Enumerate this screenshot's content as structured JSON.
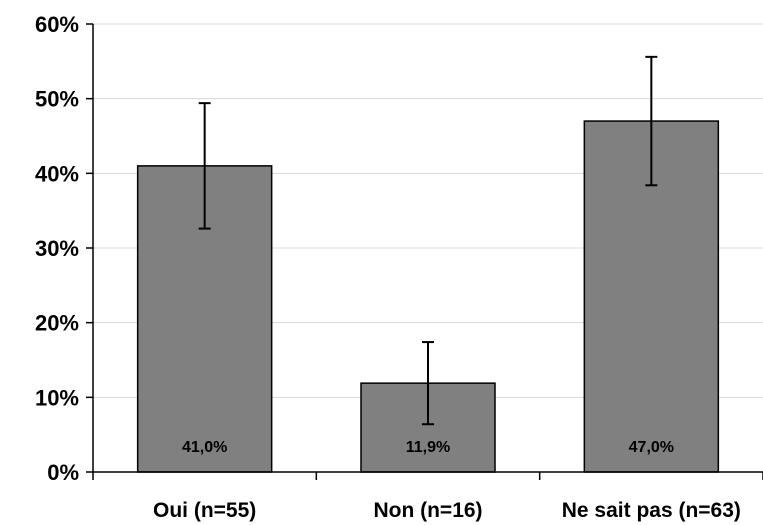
{
  "chart_data": {
    "type": "bar",
    "categories": [
      "Oui (n=55)",
      "Non (n=16)",
      "Ne sait pas (n=63)"
    ],
    "values": [
      41.0,
      11.9,
      47.0
    ],
    "data_labels": [
      "41,0%",
      "11,9%",
      "47,0%"
    ],
    "error_bars": [
      {
        "low": 32.6,
        "high": 49.4
      },
      {
        "low": 6.4,
        "high": 17.4
      },
      {
        "low": 38.4,
        "high": 55.6
      }
    ],
    "ylim": [
      0,
      60
    ],
    "yticks": [
      0,
      10,
      20,
      30,
      40,
      50,
      60
    ],
    "ytick_labels": [
      "0%",
      "10%",
      "20%",
      "30%",
      "40%",
      "50%",
      "60%"
    ],
    "title": "",
    "xlabel": "",
    "ylabel": "",
    "grid": true,
    "bar_color": "#808080",
    "grid_color": "#d9d9d9"
  }
}
